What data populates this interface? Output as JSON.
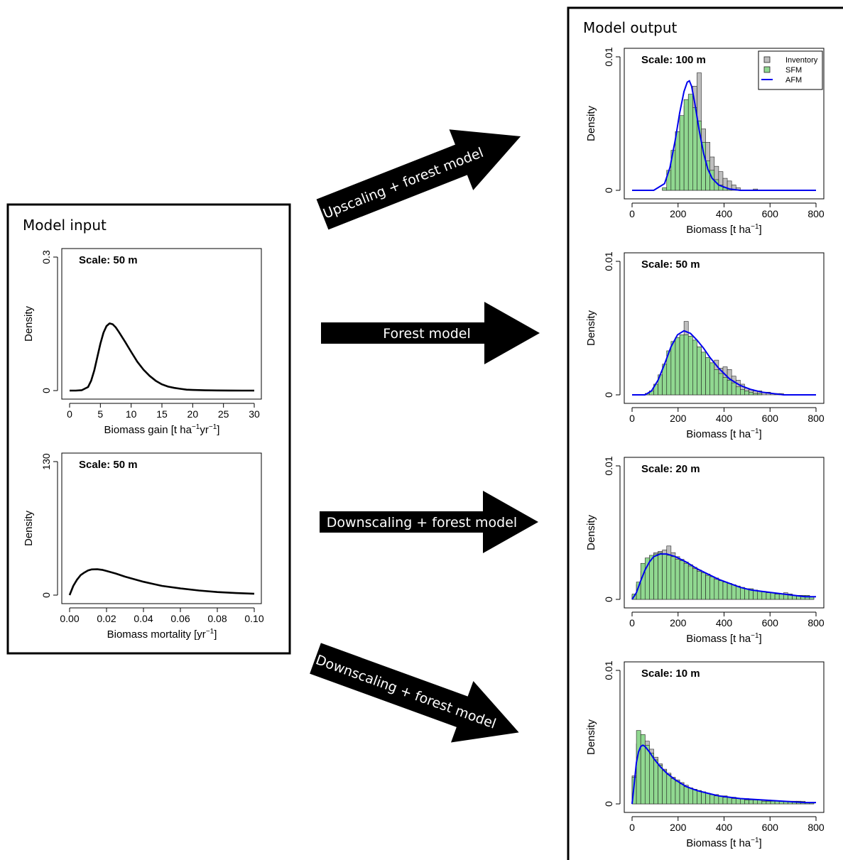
{
  "input_panel": {
    "title": "Model input"
  },
  "output_panel": {
    "title": "Model output"
  },
  "arrows": [
    {
      "label": "Upscaling + forest model"
    },
    {
      "label": "Forest model"
    },
    {
      "label": "Downscaling + forest model"
    },
    {
      "label": "Downscaling + forest model"
    }
  ],
  "colors": {
    "inventory": "#bebebe",
    "sfm": "#90d890",
    "afm": "#0000ee",
    "input_curve": "#000000"
  },
  "chart_data": [
    {
      "id": "gain",
      "type": "line",
      "scale_label": "Scale: 50 m",
      "xlabel": "Biomass gain",
      "xunit": "[t ha",
      "ylabel": "Density",
      "xlim": [
        0,
        30
      ],
      "ylim": [
        0,
        0.3
      ],
      "xticks": [
        "0",
        "5",
        "10",
        "15",
        "20",
        "25",
        "30"
      ],
      "yticks": [
        "0",
        "0.3"
      ],
      "x": [
        0,
        1,
        2,
        3,
        3.5,
        4,
        4.5,
        5,
        5.5,
        6,
        6.5,
        7,
        7.5,
        8,
        9,
        10,
        11,
        12,
        13,
        14,
        15,
        16,
        17,
        18,
        19,
        20,
        22,
        24,
        26,
        28,
        30
      ],
      "y": [
        0,
        0,
        0.001,
        0.008,
        0.022,
        0.045,
        0.075,
        0.105,
        0.13,
        0.145,
        0.151,
        0.149,
        0.142,
        0.132,
        0.11,
        0.087,
        0.065,
        0.047,
        0.033,
        0.022,
        0.014,
        0.009,
        0.006,
        0.004,
        0.002,
        0.0015,
        0.0007,
        0.0003,
        0.0001,
        0,
        0
      ]
    },
    {
      "id": "mortality",
      "type": "line",
      "scale_label": "Scale: 50 m",
      "xlabel": "Biomass mortality",
      "xunit": "[yr",
      "ylabel": "Density",
      "xlim": [
        0,
        0.1
      ],
      "ylim": [
        0,
        130
      ],
      "xticks": [
        "0.00",
        "0.02",
        "0.04",
        "0.06",
        "0.08",
        "0.10"
      ],
      "yticks": [
        "0",
        "130"
      ],
      "x": [
        0,
        0.002,
        0.004,
        0.006,
        0.008,
        0.01,
        0.012,
        0.015,
        0.018,
        0.02,
        0.025,
        0.03,
        0.035,
        0.04,
        0.045,
        0.05,
        0.06,
        0.07,
        0.08,
        0.09,
        0.1
      ],
      "y": [
        0,
        9,
        15,
        19.5,
        22,
        24,
        25,
        25.2,
        24.5,
        23.5,
        21,
        18,
        15.5,
        13,
        11,
        9,
        6.5,
        4.5,
        3,
        2,
        1.3
      ]
    },
    {
      "id": "out100",
      "type": "histogram",
      "scale_label": "Scale: 100 m",
      "xlabel": "Biomass",
      "xunit": "[t ha",
      "ylabel": "Density",
      "xlim": [
        0,
        850
      ],
      "ylim": [
        0,
        0.01
      ],
      "xticks": [
        "0",
        "200",
        "400",
        "600",
        "800"
      ],
      "yticks": [
        "0",
        "0.01"
      ],
      "legend": [
        "Inventory",
        "SFM",
        "AFM"
      ],
      "bin_width": 20,
      "bins": [
        140,
        160,
        180,
        200,
        220,
        240,
        260,
        280,
        300,
        320,
        340,
        360,
        380,
        400,
        420,
        440,
        460,
        480,
        500,
        520,
        540,
        560
      ],
      "inventory": [
        0.0001,
        0.0006,
        0.0017,
        0.0037,
        0.0052,
        0.0063,
        0.007,
        0.0078,
        0.0088,
        0.0046,
        0.0036,
        0.0025,
        0.0018,
        0.0014,
        0.0009,
        0.0007,
        0.0004,
        0.0002,
        0,
        0,
        0,
        0.0001
      ],
      "sfm": [
        0.0002,
        0.0015,
        0.003,
        0.0044,
        0.0056,
        0.0068,
        0.0072,
        0.0062,
        0.0052,
        0.0036,
        0.0022,
        0.0015,
        0.0008,
        0.0004,
        0.0002,
        0.0001,
        0,
        0,
        0,
        0,
        0,
        0
      ],
      "afm_x": [
        0,
        100,
        150,
        175,
        200,
        220,
        240,
        255,
        265,
        275,
        290,
        310,
        330,
        350,
        370,
        400,
        450,
        500,
        600,
        850
      ],
      "afm_y": [
        0,
        0,
        0.0005,
        0.0017,
        0.0038,
        0.0058,
        0.0074,
        0.0081,
        0.0082,
        0.0078,
        0.0065,
        0.0045,
        0.0028,
        0.0016,
        0.0009,
        0.0004,
        0.0001,
        0,
        0,
        0
      ]
    },
    {
      "id": "out50",
      "type": "histogram",
      "scale_label": "Scale: 50 m",
      "xlabel": "Biomass",
      "xunit": "[t ha",
      "ylabel": "Density",
      "xlim": [
        0,
        850
      ],
      "ylim": [
        0,
        0.01
      ],
      "xticks": [
        "0",
        "200",
        "400",
        "600",
        "800"
      ],
      "yticks": [
        "0",
        "0.01"
      ],
      "bin_width": 20,
      "bins": [
        60,
        80,
        100,
        120,
        140,
        160,
        180,
        200,
        220,
        240,
        260,
        280,
        300,
        320,
        340,
        360,
        380,
        400,
        420,
        440,
        460,
        480,
        500,
        520,
        540,
        560,
        580,
        600,
        620,
        640,
        660,
        680,
        700
      ],
      "inventory": [
        0.0001,
        0.0002,
        0.0004,
        0.0008,
        0.0014,
        0.0021,
        0.0029,
        0.0037,
        0.0043,
        0.0055,
        0.0041,
        0.0037,
        0.0034,
        0.003,
        0.0027,
        0.0024,
        0.0026,
        0.002,
        0.0021,
        0.0019,
        0.0014,
        0.0011,
        0.0008,
        0.0005,
        0.0004,
        0.0003,
        0.0003,
        0.0002,
        0.0002,
        0.0001,
        0.0001,
        0.0001,
        0
      ],
      "sfm": [
        0.0001,
        0.0003,
        0.0008,
        0.0015,
        0.0023,
        0.0033,
        0.004,
        0.0043,
        0.0045,
        0.0045,
        0.0044,
        0.0041,
        0.0036,
        0.0032,
        0.0028,
        0.0024,
        0.0019,
        0.0016,
        0.0013,
        0.0011,
        0.0009,
        0.0006,
        0.0004,
        0.0003,
        0.0002,
        0.0001,
        0.0001,
        0,
        0,
        0,
        0,
        0,
        0
      ],
      "afm_x": [
        0,
        60,
        90,
        120,
        150,
        180,
        210,
        240,
        270,
        300,
        330,
        360,
        400,
        450,
        500,
        550,
        600,
        700,
        850
      ],
      "afm_y": [
        0,
        0,
        0.0003,
        0.0011,
        0.0023,
        0.0036,
        0.0045,
        0.0048,
        0.0046,
        0.0041,
        0.0035,
        0.0028,
        0.002,
        0.0012,
        0.0007,
        0.0004,
        0.0002,
        0,
        0
      ]
    },
    {
      "id": "out20",
      "type": "histogram",
      "scale_label": "Scale: 20 m",
      "xlabel": "Biomass",
      "xunit": "[t ha",
      "ylabel": "Density",
      "xlim": [
        0,
        850
      ],
      "ylim": [
        0,
        0.01
      ],
      "xticks": [
        "0",
        "200",
        "400",
        "600",
        "800"
      ],
      "yticks": [
        "0",
        "0.01"
      ],
      "bin_width": 20,
      "bins": [
        0,
        20,
        40,
        60,
        80,
        100,
        120,
        140,
        160,
        180,
        200,
        220,
        240,
        260,
        280,
        300,
        320,
        340,
        360,
        380,
        400,
        420,
        440,
        460,
        480,
        500,
        520,
        540,
        560,
        580,
        600,
        620,
        640,
        660,
        680,
        700,
        720,
        740,
        760,
        780,
        800,
        820
      ],
      "inventory": [
        0.0003,
        0.0011,
        0.0021,
        0.0029,
        0.0031,
        0.0035,
        0.0036,
        0.0037,
        0.004,
        0.0035,
        0.0032,
        0.003,
        0.0028,
        0.0026,
        0.0024,
        0.0022,
        0.002,
        0.0019,
        0.0017,
        0.0016,
        0.0014,
        0.0013,
        0.0012,
        0.001,
        0.0009,
        0.0008,
        0.0007,
        0.0007,
        0.0006,
        0.0006,
        0.0005,
        0.0005,
        0.0005,
        0.0004,
        0.0004,
        0.0005,
        0.0004,
        0.0003,
        0.0003,
        0.0003,
        0.0003,
        0.0002
      ],
      "sfm": [
        0.0004,
        0.0013,
        0.0027,
        0.0031,
        0.0033,
        0.0034,
        0.0035,
        0.0034,
        0.0033,
        0.0032,
        0.003,
        0.0029,
        0.0027,
        0.0025,
        0.0023,
        0.0021,
        0.002,
        0.0018,
        0.0017,
        0.0015,
        0.0014,
        0.0013,
        0.0012,
        0.0011,
        0.001,
        0.0009,
        0.0008,
        0.0008,
        0.0007,
        0.0006,
        0.0006,
        0.0005,
        0.0005,
        0.0004,
        0.0004,
        0.0004,
        0.0004,
        0.0003,
        0.0003,
        0.0003,
        0.0003,
        0.0002
      ],
      "afm_x": [
        0,
        20,
        40,
        60,
        80,
        100,
        130,
        160,
        200,
        250,
        300,
        350,
        400,
        450,
        500,
        550,
        600,
        650,
        700,
        750,
        800,
        850
      ],
      "afm_y": [
        0,
        0.0005,
        0.0014,
        0.0022,
        0.0028,
        0.0032,
        0.0034,
        0.0034,
        0.0032,
        0.0028,
        0.0023,
        0.0019,
        0.0015,
        0.0012,
        0.0009,
        0.0007,
        0.0006,
        0.0005,
        0.0004,
        0.0003,
        0.0002,
        0.0002
      ]
    },
    {
      "id": "out10",
      "type": "histogram",
      "scale_label": "Scale: 10 m",
      "xlabel": "Biomass",
      "xunit": "[t ha",
      "ylabel": "Density",
      "xlim": [
        0,
        850
      ],
      "ylim": [
        0,
        0.01
      ],
      "xticks": [
        "0",
        "200",
        "400",
        "600",
        "800"
      ],
      "yticks": [
        "0",
        "0.01"
      ],
      "bin_width": 20,
      "bins": [
        0,
        20,
        40,
        60,
        80,
        100,
        120,
        140,
        160,
        180,
        200,
        220,
        240,
        260,
        280,
        300,
        320,
        340,
        360,
        380,
        400,
        420,
        440,
        460,
        480,
        500,
        520,
        540,
        560,
        580,
        600,
        620,
        640,
        660,
        680,
        700,
        720,
        740,
        760,
        780,
        800,
        820
      ],
      "inventory": [
        0.0021,
        0.0045,
        0.0051,
        0.0047,
        0.0041,
        0.0035,
        0.003,
        0.0026,
        0.0023,
        0.002,
        0.0018,
        0.0016,
        0.0014,
        0.0012,
        0.0011,
        0.001,
        0.0009,
        0.0008,
        0.0007,
        0.0007,
        0.0006,
        0.0006,
        0.0005,
        0.0005,
        0.0004,
        0.0004,
        0.0004,
        0.0003,
        0.0003,
        0.0003,
        0.0003,
        0.0003,
        0.0002,
        0.0002,
        0.0002,
        0.0002,
        0.0002,
        0.0002,
        0.0002,
        0.0002,
        0.0001,
        0.0001
      ],
      "sfm": [
        0.002,
        0.0055,
        0.0052,
        0.0044,
        0.0038,
        0.0033,
        0.0029,
        0.0025,
        0.0022,
        0.0019,
        0.0017,
        0.0015,
        0.0013,
        0.0012,
        0.0011,
        0.001,
        0.0009,
        0.0008,
        0.0007,
        0.0006,
        0.0006,
        0.0005,
        0.0005,
        0.0004,
        0.0004,
        0.0004,
        0.0003,
        0.0003,
        0.0003,
        0.0003,
        0.0002,
        0.0002,
        0.0002,
        0.0002,
        0.0002,
        0.0002,
        0.0002,
        0.0002,
        0.0002,
        0.0001,
        0.0001,
        0.0001
      ],
      "afm_x": [
        0,
        10,
        20,
        30,
        40,
        50,
        60,
        80,
        100,
        130,
        160,
        200,
        250,
        300,
        350,
        400,
        450,
        500,
        600,
        700,
        800,
        850
      ],
      "afm_y": [
        0,
        0.0015,
        0.0031,
        0.0039,
        0.0043,
        0.0044,
        0.0043,
        0.0039,
        0.0034,
        0.0028,
        0.0023,
        0.0018,
        0.0013,
        0.001,
        0.0008,
        0.0006,
        0.0005,
        0.0004,
        0.0003,
        0.0002,
        0.0001,
        0.0001
      ]
    }
  ]
}
